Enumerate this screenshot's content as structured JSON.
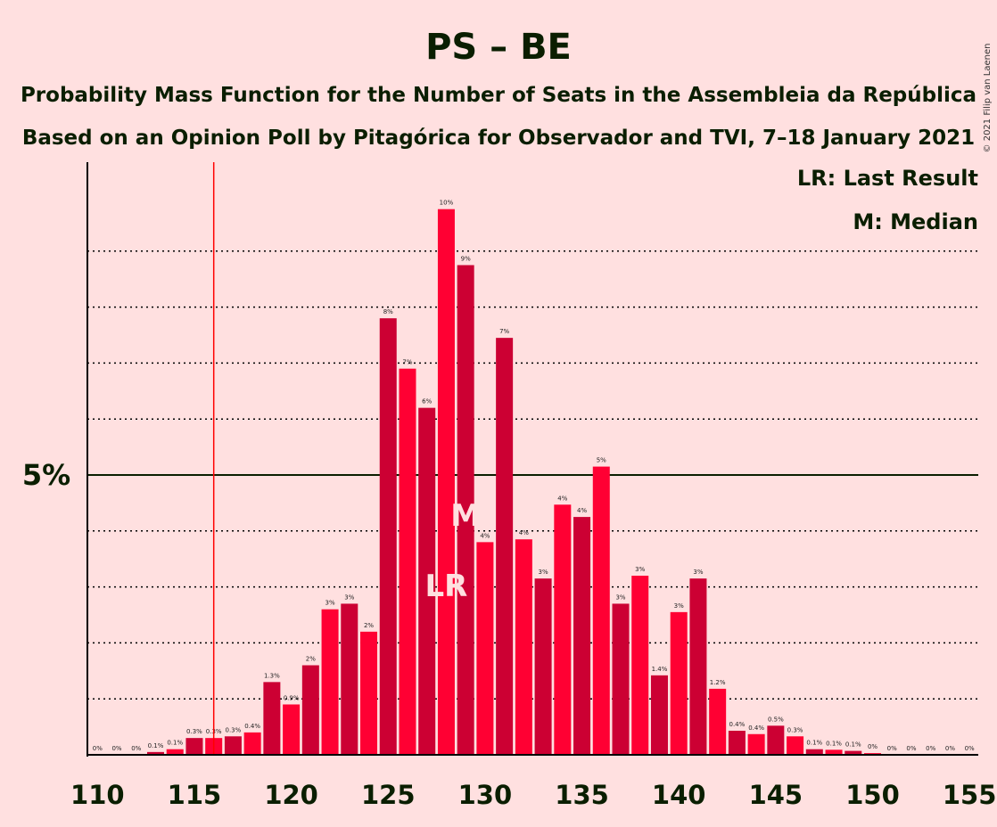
{
  "chart_data": {
    "type": "bar",
    "title": "PS – BE",
    "subtitle_lines": [
      "Probability Mass Function for the Number of Seats in the Assembleia da República",
      "Based on an Opinion Poll by Pitagórica for Observador and TVI, 7–18 January 2021"
    ],
    "copyright": "© 2021 Filip van Laenen",
    "legend": {
      "position": "top-right",
      "entries": [
        "LR: Last Result",
        "M: Median"
      ]
    },
    "x": [
      110,
      111,
      112,
      113,
      114,
      115,
      116,
      117,
      118,
      119,
      120,
      121,
      122,
      123,
      124,
      125,
      126,
      127,
      128,
      129,
      130,
      131,
      132,
      133,
      134,
      135,
      136,
      137,
      138,
      139,
      140,
      141,
      142,
      143,
      144,
      145,
      146,
      147,
      148,
      149,
      150,
      151,
      152,
      153,
      154,
      155
    ],
    "values": [
      0,
      0,
      0,
      0.05,
      0.1,
      0.3,
      0.3,
      0.33,
      0.4,
      1.3,
      0.9,
      1.6,
      2.6,
      2.7,
      2.2,
      7.8,
      6.9,
      6.2,
      9.75,
      8.75,
      3.8,
      7.45,
      3.85,
      3.15,
      4.47,
      4.25,
      5.15,
      2.7,
      3.2,
      1.42,
      2.55,
      3.15,
      1.18,
      0.43,
      0.37,
      0.52,
      0.33,
      0.1,
      0.09,
      0.07,
      0.03,
      0,
      0,
      0,
      0,
      0
    ],
    "data_labels": [
      "0%",
      "0%",
      "0%",
      "0.1%",
      "0.1%",
      "0.3%",
      "0.3%",
      "0.3%",
      "0.4%",
      "1.3%",
      "0.9%",
      "2%",
      "3%",
      "3%",
      "2%",
      "8%",
      "7%",
      "6%",
      "10%",
      "9%",
      "4%",
      "7%",
      "4%",
      "3%",
      "4%",
      "4%",
      "5%",
      "3%",
      "3%",
      "1.4%",
      "3%",
      "3%",
      "1.2%",
      "0.4%",
      "0.4%",
      "0.5%",
      "0.3%",
      "0.1%",
      "0.1%",
      "0.1%",
      "0%",
      "0%",
      "0%",
      "0%",
      "0%",
      "0%"
    ],
    "x_ticks": [
      "110",
      "115",
      "120",
      "125",
      "130",
      "135",
      "140",
      "145",
      "150",
      "155"
    ],
    "y_tick": {
      "value": 5,
      "label": "5%"
    },
    "ylim": [
      0,
      10.6
    ],
    "gridlines_dotted": [
      1,
      2,
      3,
      4,
      6,
      7,
      8,
      9
    ],
    "last_result": {
      "seat": 128,
      "label": "LR"
    },
    "median": {
      "seat": 129,
      "label": "M"
    },
    "threshold_line_seat": 116,
    "colors": {
      "bar_even": "#FF0033",
      "bar_odd": "#CC0033",
      "background": "#FFE0E0",
      "threshold": "#FF0000",
      "text": "#0A1E00"
    }
  }
}
